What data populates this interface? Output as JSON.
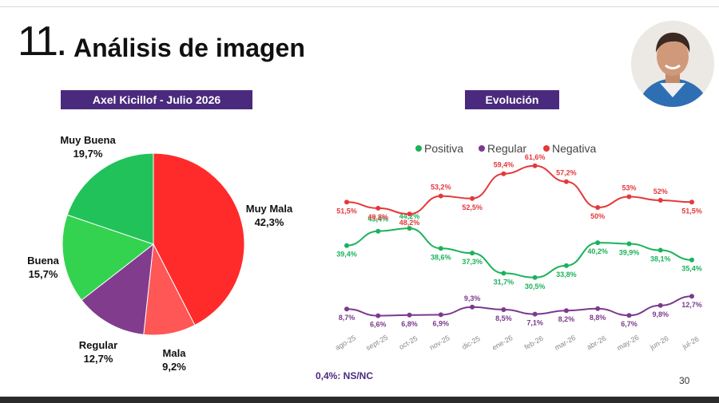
{
  "header": {
    "number": "11.",
    "title": "Análisis de imagen"
  },
  "left_pill": "Axel Kicillof - Julio 2026",
  "right_pill": "Evolución",
  "footnote": "0,4%: NS/NC",
  "page_number": "30",
  "colors": {
    "purple": "#4a2a7e",
    "positiva": "#1bb25a",
    "regular": "#7b3a8c",
    "negativa": "#e5383b",
    "muy_mala": "#ff2b2b",
    "mala": "#ff5656",
    "regular_slice": "#813c8e",
    "buena": "#34d34f",
    "muy_buena": "#22c25a"
  },
  "chart_data": [
    {
      "type": "pie",
      "title": "Axel Kicillof - Julio 2026",
      "slices": [
        {
          "label": "Muy Mala",
          "value": 42.3,
          "value_label": "42,3%",
          "color": "#ff2b2b"
        },
        {
          "label": "Mala",
          "value": 9.2,
          "value_label": "9,2%",
          "color": "#ff5656"
        },
        {
          "label": "Regular",
          "value": 12.7,
          "value_label": "12,7%",
          "color": "#813c8e"
        },
        {
          "label": "Buena",
          "value": 15.7,
          "value_label": "15,7%",
          "color": "#34d34f"
        },
        {
          "label": "Muy Buena",
          "value": 19.7,
          "value_label": "19,7%",
          "color": "#22c25a"
        }
      ]
    },
    {
      "type": "line",
      "title": "Evolución",
      "categories": [
        "ago-25",
        "sept-25",
        "oct-25",
        "nov-25",
        "dic-25",
        "ene-26",
        "feb-26",
        "mar-26",
        "abr-26",
        "may-26",
        "jun-26",
        "jul-26"
      ],
      "legend_position": "top",
      "series": [
        {
          "name": "Positiva",
          "color": "#1bb25a",
          "values": [
            39.4,
            43.4,
            44.2,
            38.6,
            37.3,
            31.7,
            30.5,
            33.8,
            40.2,
            39.9,
            38.1,
            35.4
          ],
          "labels": [
            "39,4%",
            "43,4%",
            "44,2%",
            "38,6%",
            "37,3%",
            "31,7%",
            "30,5%",
            "33,8%",
            "40,2%",
            "39,9%",
            "38,1%",
            "35,4%"
          ]
        },
        {
          "name": "Regular",
          "color": "#7b3a8c",
          "values": [
            8.7,
            6.6,
            6.8,
            6.9,
            9.3,
            8.5,
            7.1,
            8.2,
            8.8,
            6.7,
            9.8,
            12.7
          ],
          "labels": [
            "8,7%",
            "6,6%",
            "6,8%",
            "6,9%",
            "9,3%",
            "8,5%",
            "7,1%",
            "8,2%",
            "8,8%",
            "6,7%",
            "9,8%",
            "12,7%"
          ]
        },
        {
          "name": "Negativa",
          "color": "#e5383b",
          "values": [
            51.5,
            49.8,
            48.2,
            53.2,
            52.5,
            59.4,
            61.6,
            57.2,
            50,
            53,
            52,
            51.5
          ],
          "labels": [
            "51,5%",
            "49,8%",
            "48,2%",
            "53,2%",
            "52,5%",
            "59,4%",
            "61,6%",
            "57,2%",
            "50%",
            "53%",
            "52%",
            "51,5%"
          ]
        }
      ]
    }
  ]
}
